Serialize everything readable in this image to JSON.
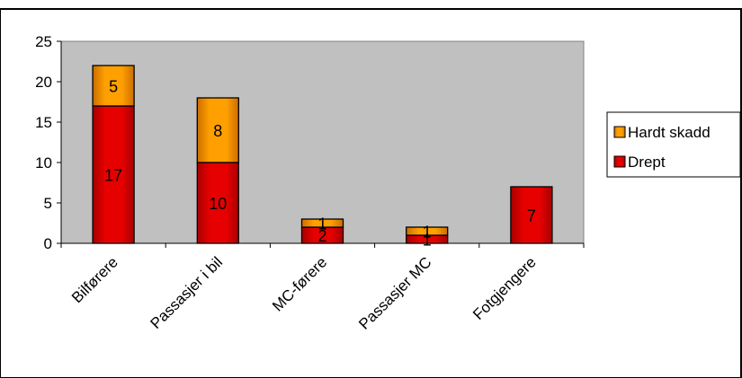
{
  "chart_data": {
    "type": "bar",
    "stacked": true,
    "categories": [
      "Bilførere",
      "Passasjer i bil",
      "MC-førere",
      "Passasjer MC",
      "Fotgjengere"
    ],
    "series": [
      {
        "name": "Drept",
        "values": [
          17,
          10,
          2,
          1,
          7
        ],
        "color": "#e60000",
        "shade": "#a80000"
      },
      {
        "name": "Hardt skadd",
        "values": [
          5,
          8,
          1,
          1,
          0
        ],
        "color": "#ffa000",
        "shade": "#cc6e00"
      }
    ],
    "data_labels": [
      [
        "17",
        "10",
        "2",
        "1",
        "7"
      ],
      [
        "5",
        "8",
        "1",
        "1",
        ""
      ]
    ],
    "yticks": [
      "0",
      "5",
      "10",
      "15",
      "20",
      "25"
    ],
    "ylim": [
      0,
      25
    ],
    "grid": false,
    "plot_background": "#c0c0c0",
    "legend_position": "right",
    "legend_order": [
      "Hardt skadd",
      "Drept"
    ]
  }
}
